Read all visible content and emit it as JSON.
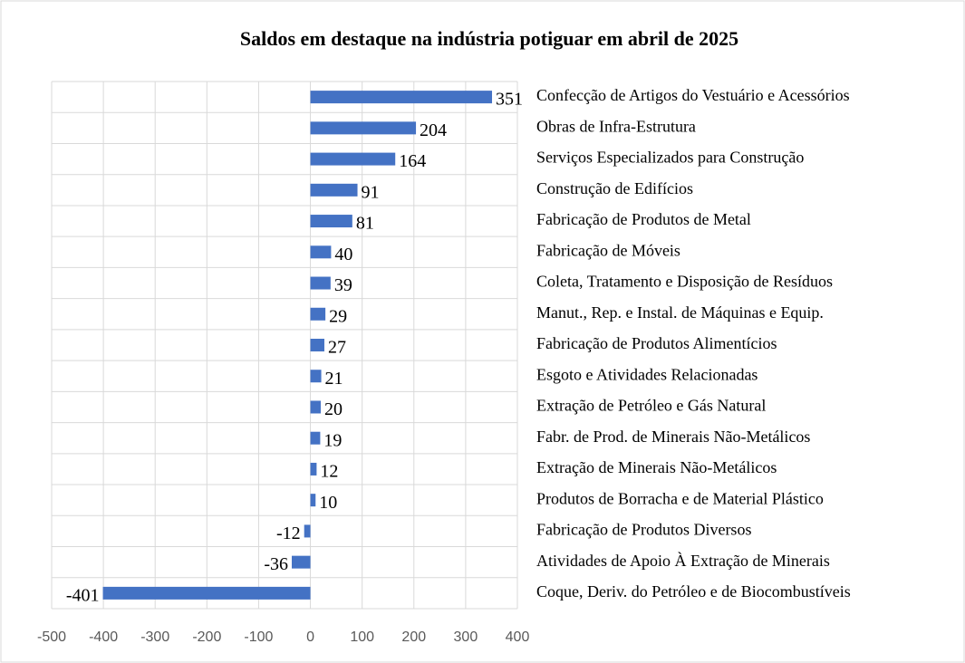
{
  "chart_data": {
    "type": "bar",
    "orientation": "horizontal",
    "title": "Saldos em destaque na indústria potiguar em abril de 2025",
    "categories": [
      "Confecção de Artigos do Vestuário e Acessórios",
      "Obras de Infra-Estrutura",
      "Serviços Especializados para Construção",
      "Construção de Edifícios",
      "Fabricação de Produtos de Metal",
      "Fabricação de Móveis",
      "Coleta, Tratamento e Disposição de Resíduos",
      "Manut., Rep. e Instal. de Máquinas e Equip.",
      "Fabricação de Produtos Alimentícios",
      "Esgoto e Atividades Relacionadas",
      "Extração de Petróleo e Gás Natural",
      "Fabr. de Prod. de Minerais Não-Metálicos",
      "Extração de Minerais Não-Metálicos",
      "Produtos de Borracha e de Material Plástico",
      "Fabricação de Produtos Diversos",
      "Atividades de Apoio À Extração de Minerais",
      "Coque, Deriv. do Petróleo e de Biocombustíveis"
    ],
    "values": [
      351,
      204,
      164,
      91,
      81,
      40,
      39,
      29,
      27,
      21,
      20,
      19,
      12,
      10,
      -12,
      -36,
      -401
    ],
    "color": "#4472c4",
    "xlim": [
      -500,
      400
    ],
    "xticks": [
      -500,
      -400,
      -300,
      -200,
      -100,
      0,
      100,
      200,
      300,
      400
    ],
    "grid": true
  }
}
